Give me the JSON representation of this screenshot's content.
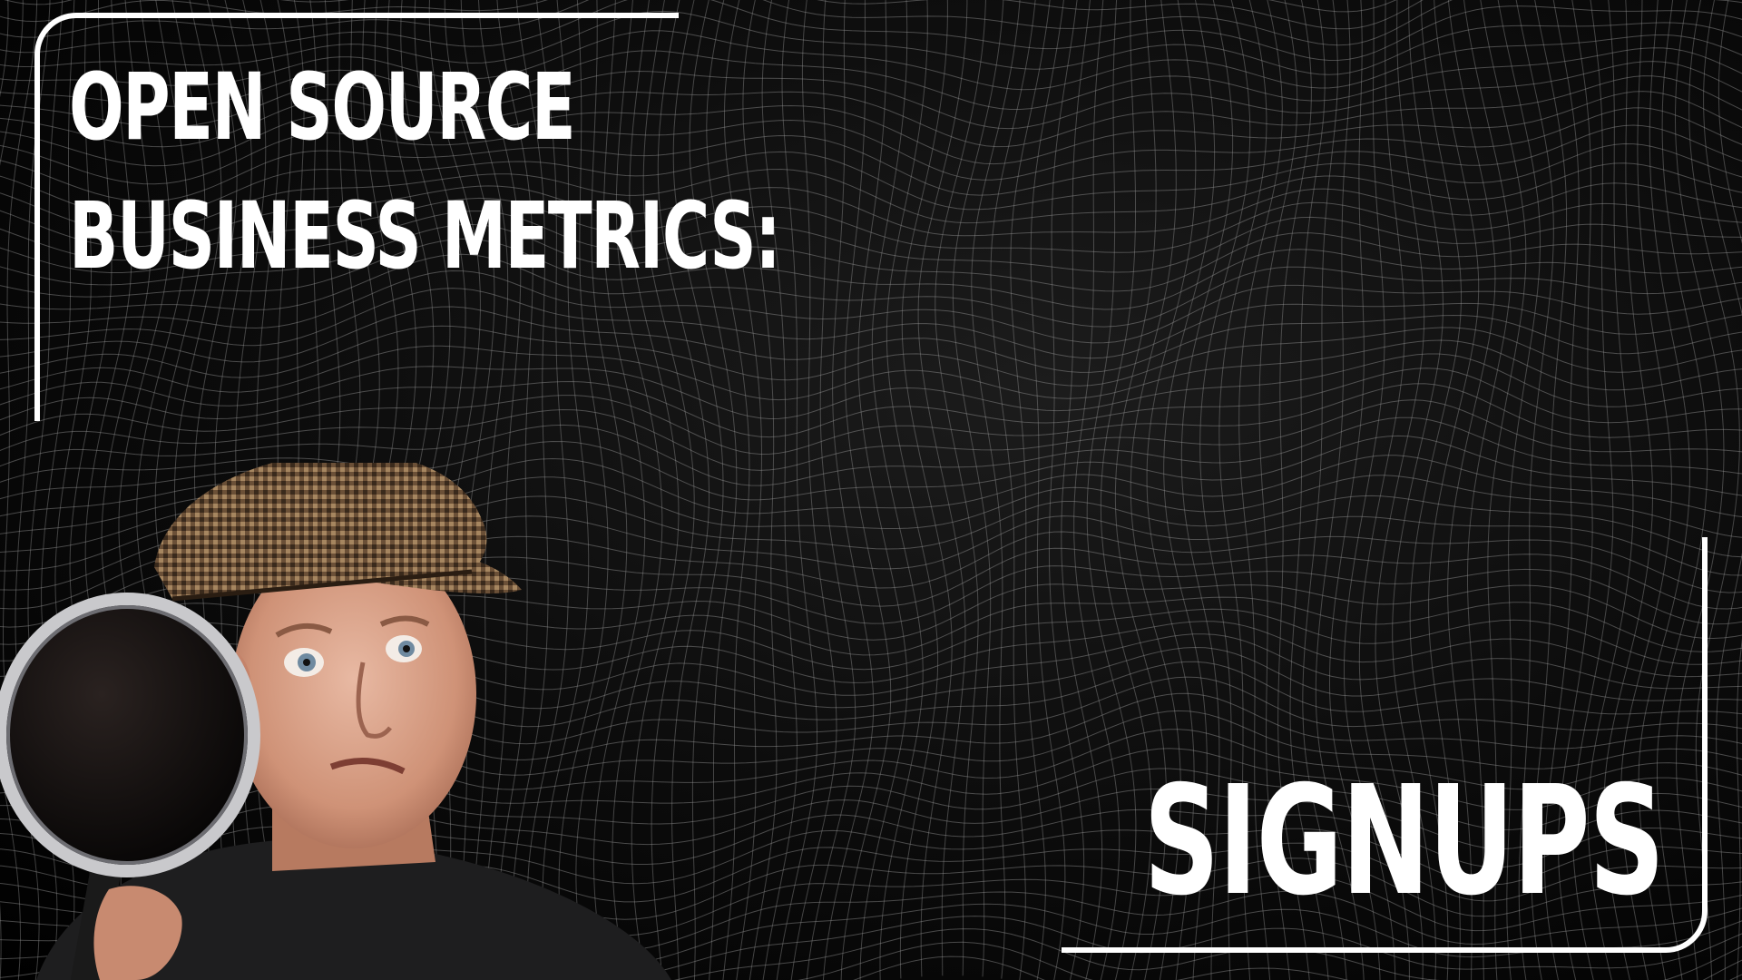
{
  "title": {
    "line1": "OPEN SOURCE",
    "line2": "BUSINESS METRICS:"
  },
  "subtitle": "SIGNUPS",
  "colors": {
    "background": "#000000",
    "text": "#ffffff",
    "mesh": "#9a9a9a",
    "frame": "#ffffff"
  },
  "icons": [
    "wireframe-mesh-background",
    "person-with-magnifying-glass"
  ]
}
